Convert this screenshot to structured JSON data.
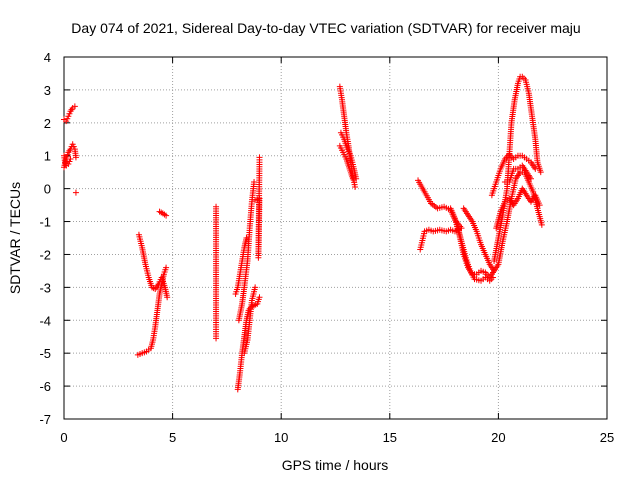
{
  "chart_data": {
    "type": "scatter",
    "title": "Day 074 of 2021, Sidereal Day-to-day VTEC variation (SDTVAR) for receiver maju",
    "xlabel": "GPS time / hours",
    "ylabel": "SDTVAR / TECUs",
    "xlim": [
      0,
      25
    ],
    "ylim": [
      -7,
      4
    ],
    "xticks": [
      0,
      5,
      10,
      15,
      20,
      25
    ],
    "yticks": [
      -7,
      -6,
      -5,
      -4,
      -3,
      -2,
      -1,
      0,
      1,
      2,
      3,
      4
    ],
    "grid": true,
    "marker": "+",
    "color": "#ff0000",
    "series": [
      {
        "name": "SDTVAR",
        "tracks": [
          [
            [
              0.0,
              2.1
            ],
            [
              0.1,
              2.05
            ],
            [
              0.2,
              2.2
            ],
            [
              0.3,
              2.35
            ],
            [
              0.4,
              2.45
            ],
            [
              0.5,
              2.5
            ]
          ],
          [
            [
              0.0,
              0.65
            ],
            [
              0.1,
              0.9
            ],
            [
              0.2,
              1.1
            ],
            [
              0.3,
              1.2
            ],
            [
              0.4,
              1.35
            ],
            [
              0.5,
              1.2
            ],
            [
              0.55,
              0.95
            ]
          ],
          [
            [
              0.0,
              1.0
            ],
            [
              0.05,
              0.8
            ],
            [
              0.1,
              0.7
            ],
            [
              0.2,
              0.75
            ],
            [
              0.3,
              0.9
            ]
          ],
          [
            [
              0.55,
              -0.12
            ]
          ],
          [
            [
              3.4,
              -5.05
            ],
            [
              3.6,
              -5.0
            ],
            [
              3.8,
              -4.95
            ],
            [
              4.0,
              -4.85
            ],
            [
              4.1,
              -4.6
            ],
            [
              4.2,
              -4.2
            ],
            [
              4.3,
              -3.7
            ],
            [
              4.4,
              -3.2
            ],
            [
              4.5,
              -2.9
            ],
            [
              4.6,
              -2.6
            ],
            [
              4.7,
              -2.4
            ]
          ],
          [
            [
              3.45,
              -1.4
            ],
            [
              3.6,
              -1.8
            ],
            [
              3.75,
              -2.3
            ],
            [
              3.9,
              -2.7
            ],
            [
              4.05,
              -3.0
            ],
            [
              4.2,
              -3.05
            ],
            [
              4.35,
              -2.9
            ],
            [
              4.5,
              -2.7
            ],
            [
              4.65,
              -3.0
            ],
            [
              4.75,
              -3.3
            ]
          ],
          [
            [
              4.4,
              -0.7
            ],
            [
              4.55,
              -0.75
            ],
            [
              4.7,
              -0.82
            ]
          ],
          [
            [
              7.0,
              -0.55
            ],
            [
              7.0,
              -1.35
            ],
            [
              7.0,
              -4.0
            ],
            [
              7.0,
              -4.55
            ]
          ],
          [
            [
              8.0,
              -6.1
            ],
            [
              8.1,
              -5.6
            ],
            [
              8.2,
              -5.0
            ],
            [
              8.3,
              -4.5
            ],
            [
              8.4,
              -4.0
            ],
            [
              8.5,
              -3.7
            ],
            [
              8.6,
              -3.6
            ],
            [
              8.75,
              -3.55
            ],
            [
              8.9,
              -3.5
            ],
            [
              9.0,
              -3.3
            ]
          ],
          [
            [
              8.05,
              -4.0
            ],
            [
              8.2,
              -3.5
            ],
            [
              8.3,
              -3.0
            ],
            [
              8.45,
              -2.2
            ],
            [
              8.55,
              -1.2
            ],
            [
              8.65,
              -0.4
            ],
            [
              8.75,
              0.2
            ]
          ],
          [
            [
              7.9,
              -3.2
            ],
            [
              8.0,
              -3.0
            ],
            [
              8.1,
              -2.6
            ],
            [
              8.2,
              -2.2
            ],
            [
              8.3,
              -1.8
            ],
            [
              8.4,
              -1.5
            ]
          ],
          [
            [
              8.3,
              -5.0
            ],
            [
              8.45,
              -4.6
            ],
            [
              8.55,
              -4.0
            ],
            [
              8.65,
              -3.4
            ],
            [
              8.8,
              -3.0
            ]
          ],
          [
            [
              8.8,
              -0.35
            ],
            [
              9.0,
              -0.3
            ],
            [
              8.95,
              -2.1
            ],
            [
              9.0,
              0.8
            ],
            [
              9.0,
              0.95
            ]
          ],
          [
            [
              12.7,
              3.1
            ],
            [
              12.8,
              2.7
            ],
            [
              12.9,
              2.2
            ],
            [
              13.0,
              1.7
            ],
            [
              13.1,
              1.3
            ],
            [
              13.2,
              0.8
            ],
            [
              13.3,
              0.4
            ],
            [
              13.4,
              0.05
            ]
          ],
          [
            [
              12.75,
              1.7
            ],
            [
              12.9,
              1.5
            ],
            [
              13.05,
              1.2
            ],
            [
              13.2,
              1.0
            ],
            [
              13.35,
              0.6
            ],
            [
              13.45,
              0.3
            ]
          ],
          [
            [
              12.7,
              1.3
            ],
            [
              12.85,
              1.1
            ],
            [
              13.0,
              0.9
            ],
            [
              13.15,
              0.6
            ],
            [
              13.3,
              0.3
            ]
          ],
          [
            [
              16.3,
              0.25
            ],
            [
              16.6,
              -0.1
            ],
            [
              16.9,
              -0.45
            ],
            [
              17.2,
              -0.6
            ],
            [
              17.5,
              -0.55
            ],
            [
              17.8,
              -0.65
            ],
            [
              18.0,
              -0.95
            ],
            [
              18.3,
              -1.2
            ]
          ],
          [
            [
              16.4,
              -1.85
            ],
            [
              16.6,
              -1.3
            ],
            [
              16.8,
              -1.25
            ],
            [
              17.0,
              -1.3
            ],
            [
              17.3,
              -1.25
            ],
            [
              17.6,
              -1.3
            ],
            [
              17.8,
              -1.25
            ],
            [
              18.0,
              -1.3
            ],
            [
              18.15,
              -1.25
            ]
          ],
          [
            [
              17.8,
              -0.6
            ],
            [
              18.0,
              -0.9
            ],
            [
              18.2,
              -1.4
            ],
            [
              18.4,
              -2.0
            ],
            [
              18.6,
              -2.4
            ],
            [
              18.8,
              -2.6
            ],
            [
              19.0,
              -2.6
            ],
            [
              19.2,
              -2.5
            ],
            [
              19.4,
              -2.55
            ],
            [
              19.6,
              -2.7
            ],
            [
              19.8,
              -2.5
            ]
          ],
          [
            [
              18.1,
              -1.1
            ],
            [
              18.3,
              -1.6
            ],
            [
              18.5,
              -2.1
            ],
            [
              18.7,
              -2.5
            ],
            [
              18.9,
              -2.75
            ],
            [
              19.2,
              -2.8
            ],
            [
              19.4,
              -2.7
            ],
            [
              19.6,
              -2.8
            ],
            [
              19.75,
              -2.7
            ]
          ],
          [
            [
              18.4,
              -0.6
            ],
            [
              18.6,
              -0.8
            ],
            [
              18.8,
              -1.0
            ],
            [
              19.0,
              -1.3
            ],
            [
              19.2,
              -1.7
            ],
            [
              19.4,
              -2.0
            ],
            [
              19.6,
              -2.3
            ],
            [
              19.8,
              -2.5
            ],
            [
              20.0,
              -2.3
            ],
            [
              20.2,
              -1.6
            ],
            [
              20.4,
              -1.0
            ],
            [
              20.6,
              -0.3
            ],
            [
              20.8,
              0.3
            ],
            [
              21.0,
              0.5
            ],
            [
              21.2,
              0.5
            ],
            [
              21.4,
              0.2
            ],
            [
              21.6,
              -0.1
            ],
            [
              21.8,
              -0.6
            ],
            [
              22.0,
              -1.1
            ]
          ],
          [
            [
              19.8,
              -2.2
            ],
            [
              20.0,
              -1.5
            ],
            [
              20.2,
              -0.8
            ],
            [
              20.4,
              0.0
            ],
            [
              20.5,
              1.0
            ],
            [
              20.6,
              2.0
            ],
            [
              20.75,
              2.7
            ],
            [
              20.9,
              3.2
            ],
            [
              21.0,
              3.4
            ],
            [
              21.1,
              3.4
            ],
            [
              21.25,
              3.3
            ],
            [
              21.4,
              2.9
            ],
            [
              21.55,
              2.2
            ],
            [
              21.7,
              1.5
            ],
            [
              21.8,
              0.8
            ],
            [
              21.95,
              0.5
            ]
          ],
          [
            [
              19.7,
              -0.2
            ],
            [
              19.9,
              0.2
            ],
            [
              20.1,
              0.6
            ],
            [
              20.3,
              0.9
            ],
            [
              20.5,
              1.05
            ],
            [
              20.7,
              0.9
            ],
            [
              20.9,
              1.0
            ],
            [
              21.1,
              1.0
            ],
            [
              21.3,
              0.9
            ],
            [
              21.5,
              0.8
            ],
            [
              21.7,
              0.6
            ]
          ],
          [
            [
              19.9,
              -1.2
            ],
            [
              20.1,
              -0.7
            ],
            [
              20.3,
              -0.4
            ],
            [
              20.5,
              -0.3
            ],
            [
              20.7,
              -0.5
            ],
            [
              20.9,
              -0.3
            ],
            [
              21.1,
              0.0
            ],
            [
              21.3,
              -0.2
            ],
            [
              21.5,
              -0.4
            ],
            [
              21.7,
              -0.2
            ],
            [
              21.9,
              -0.5
            ]
          ],
          [
            [
              20.3,
              0.2
            ],
            [
              20.5,
              0.2
            ],
            [
              20.7,
              0.6
            ],
            [
              20.9,
              0.6
            ],
            [
              21.1,
              0.7
            ],
            [
              21.3,
              0.5
            ],
            [
              21.5,
              0.3
            ]
          ]
        ]
      }
    ]
  }
}
